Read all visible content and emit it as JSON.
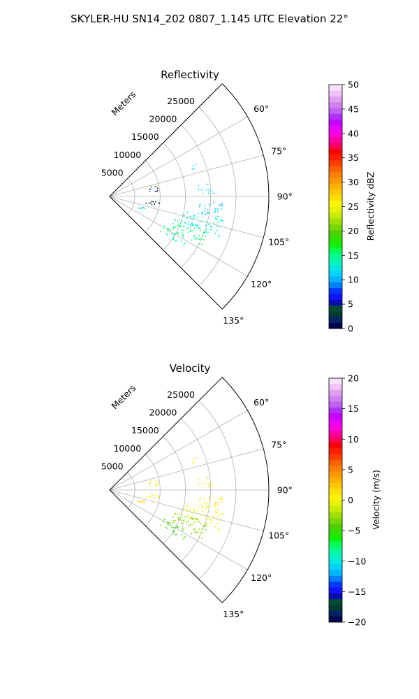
{
  "figure_title": "SKYLER-HU  SN14_202  0807_1.145 UTC Elevation 22°",
  "chart_data": [
    {
      "type": "polar-sector",
      "title": "Reflectivity",
      "range_label": "Meters",
      "range_ticks": [
        5000,
        10000,
        15000,
        20000,
        25000
      ],
      "range_tick_labels": [
        "5000",
        "10000",
        "15000",
        "20000",
        "25000"
      ],
      "rmax": 31500,
      "theta_ticks": [
        60,
        75,
        90,
        105,
        120,
        135
      ],
      "theta_tick_labels": [
        "60°",
        "75°",
        "90°",
        "105°",
        "120°",
        "135°"
      ],
      "theta_range_deg": [
        45,
        135
      ],
      "grid": true,
      "colorbar": {
        "label": "Reflectivity dBZ",
        "vmin": 0,
        "vmax": 50,
        "ticks": [
          0,
          5,
          10,
          15,
          20,
          25,
          30,
          35,
          40,
          45,
          50
        ],
        "tick_labels": [
          "0",
          "5",
          "10",
          "15",
          "20",
          "25",
          "30",
          "35",
          "40",
          "45",
          "50"
        ],
        "colors": [
          "#00004c",
          "#002266",
          "#003a33",
          "#004c30",
          "#0a0ab4",
          "#1212ff",
          "#0038ff",
          "#0080ff",
          "#00b4ff",
          "#00d2ff",
          "#00e8e0",
          "#00f5b8",
          "#00ff90",
          "#00ff50",
          "#10f000",
          "#30e000",
          "#50d000",
          "#78d800",
          "#a0e000",
          "#c8ec00",
          "#e6f200",
          "#fff500",
          "#ffe000",
          "#ffc800",
          "#ffb000",
          "#ff9800",
          "#ff8000",
          "#ff6000",
          "#ff3c00",
          "#ff1e00",
          "#ff0000",
          "#ff0060",
          "#ff00a0",
          "#ff00e0",
          "#e600ff",
          "#c800ff",
          "#b030ff",
          "#c060f0",
          "#d080f0",
          "#e0a0f0",
          "#f0c0f8",
          "#f8e0fc"
        ]
      },
      "echo_clusters": [
        {
          "az": [
            69,
            72
          ],
          "r": [
            17000,
            19500
          ],
          "value": 11
        },
        {
          "az": [
            82,
            88
          ],
          "r": [
            17500,
            20500
          ],
          "value": 13
        },
        {
          "az": [
            93,
            101
          ],
          "r": [
            17500,
            22500
          ],
          "value": 11
        },
        {
          "az": [
            101,
            110
          ],
          "r": [
            15000,
            23000
          ],
          "value": 13
        },
        {
          "az": [
            108,
            118
          ],
          "r": [
            13500,
            20500
          ],
          "value": 15
        },
        {
          "az": [
            118,
            125
          ],
          "r": [
            12000,
            17500
          ],
          "value": 15
        },
        {
          "az": [
            76,
            84
          ],
          "r": [
            7500,
            9500
          ],
          "value": 5
        },
        {
          "az": [
            95,
            101
          ],
          "r": [
            7000,
            10000
          ],
          "value": 4
        },
        {
          "az": [
            107,
            113
          ],
          "r": [
            6000,
            7500
          ],
          "value": 11
        }
      ]
    },
    {
      "type": "polar-sector",
      "title": "Velocity",
      "range_label": "Meters",
      "range_ticks": [
        5000,
        10000,
        15000,
        20000,
        25000
      ],
      "range_tick_labels": [
        "5000",
        "10000",
        "15000",
        "20000",
        "25000"
      ],
      "rmax": 31500,
      "theta_ticks": [
        60,
        75,
        90,
        105,
        120,
        135
      ],
      "theta_tick_labels": [
        "60°",
        "75°",
        "90°",
        "105°",
        "120°",
        "135°"
      ],
      "theta_range_deg": [
        45,
        135
      ],
      "grid": true,
      "colorbar": {
        "label": "Velocity (m/s)",
        "vmin": -20,
        "vmax": 20,
        "ticks": [
          -20,
          -15,
          -10,
          -5,
          0,
          5,
          10,
          15,
          20
        ],
        "tick_labels": [
          "−20",
          "−15",
          "−10",
          "−5",
          "0",
          "5",
          "10",
          "15",
          "20"
        ],
        "colors": [
          "#00004c",
          "#002266",
          "#003a33",
          "#004c30",
          "#0a0ab4",
          "#1212ff",
          "#0038ff",
          "#0080ff",
          "#00b4ff",
          "#00d2ff",
          "#00e8e0",
          "#00f5b8",
          "#00ff90",
          "#00ff50",
          "#10f000",
          "#30e000",
          "#50d000",
          "#78d800",
          "#a0e000",
          "#c8ec00",
          "#e6f200",
          "#fff500",
          "#ffe000",
          "#ffc800",
          "#ffb000",
          "#ff9800",
          "#ff8000",
          "#ff6000",
          "#ff3c00",
          "#ff1e00",
          "#ff0000",
          "#ff0060",
          "#ff00a0",
          "#ff00e0",
          "#e600ff",
          "#c800ff",
          "#b030ff",
          "#c060f0",
          "#d080f0",
          "#e0a0f0",
          "#f0c0f8",
          "#f8e0fc"
        ]
      },
      "echo_clusters": [
        {
          "az": [
            69,
            72
          ],
          "r": [
            17000,
            19500
          ],
          "value": 1
        },
        {
          "az": [
            82,
            88
          ],
          "r": [
            17500,
            20500
          ],
          "value": 1
        },
        {
          "az": [
            93,
            101
          ],
          "r": [
            17500,
            22500
          ],
          "value": 1
        },
        {
          "az": [
            101,
            110
          ],
          "r": [
            15000,
            23000
          ],
          "value": 0
        },
        {
          "az": [
            108,
            118
          ],
          "r": [
            13500,
            20500
          ],
          "value": -3
        },
        {
          "az": [
            118,
            125
          ],
          "r": [
            12000,
            17500
          ],
          "value": -5
        },
        {
          "az": [
            76,
            84
          ],
          "r": [
            7500,
            9500
          ],
          "value": 1
        },
        {
          "az": [
            95,
            101
          ],
          "r": [
            7000,
            10000
          ],
          "value": 1
        },
        {
          "az": [
            107,
            113
          ],
          "r": [
            6000,
            7500
          ],
          "value": 2
        }
      ]
    }
  ]
}
